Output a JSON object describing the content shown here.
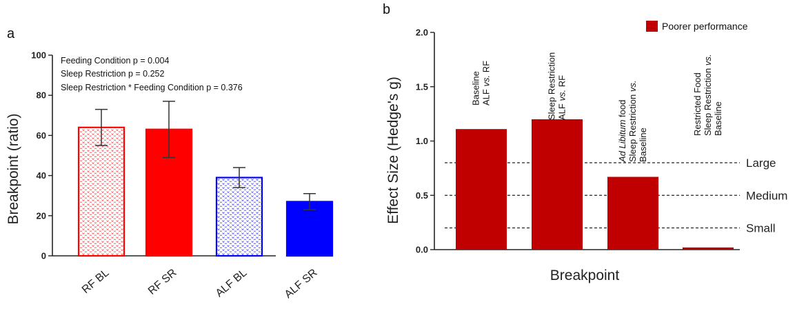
{
  "chart_data": [
    {
      "panel": "a",
      "type": "bar",
      "ylabel": "Breakpoint (ratio)",
      "ylim": [
        0,
        100
      ],
      "yticks": [
        0,
        20,
        40,
        60,
        80,
        100
      ],
      "categories": [
        "RF BL",
        "RF SR",
        "ALF BL",
        "ALF SR"
      ],
      "values": [
        64,
        63,
        39,
        27
      ],
      "errors": [
        9,
        14,
        5,
        4
      ],
      "colors": [
        "#ff0000",
        "#ff0000",
        "#0000ff",
        "#0000ff"
      ],
      "patterned": [
        true,
        false,
        true,
        false
      ],
      "annotations": [
        "Feeding Condition p = 0.004",
        "Sleep Restriction p = 0.252",
        "Sleep Restriction * Feeding Condition p = 0.376"
      ]
    },
    {
      "panel": "b",
      "type": "bar",
      "ylabel": "Effect Size (Hedge's g)",
      "xlabel": "Breakpoint",
      "ylim": [
        0,
        2.0
      ],
      "yticks": [
        "0.0",
        "0.5",
        "1.0",
        "1.5",
        "2.0"
      ],
      "values": [
        1.11,
        1.2,
        0.67,
        0.02
      ],
      "bar_labels": [
        [
          {
            "t": "Baseline"
          },
          {
            "t": "ALF ",
            "i": "vs.",
            "r": " RF"
          }
        ],
        [
          {
            "t": "Sleep Restriction"
          },
          {
            "t": "ALF ",
            "i": "vs.",
            "r": " RF"
          }
        ],
        [
          {
            "i": "Ad  Libitum",
            "r": " food"
          },
          {
            "t": "Sleep Restriction ",
            "i": "vs."
          },
          {
            "t": "Baseline"
          }
        ],
        [
          {
            "t": "Restricted Food"
          },
          {
            "t": "Sleep Restriction ",
            "i": "vs."
          },
          {
            "t": "Baseline"
          }
        ]
      ],
      "thresholds": [
        {
          "label": "Large",
          "value": 0.8
        },
        {
          "label": "Medium",
          "value": 0.5
        },
        {
          "label": "Small",
          "value": 0.2
        }
      ],
      "legend": {
        "label": "Poorer performance",
        "color": "#c00000",
        "position": "top-right"
      },
      "bar_color": "#c00000"
    }
  ]
}
